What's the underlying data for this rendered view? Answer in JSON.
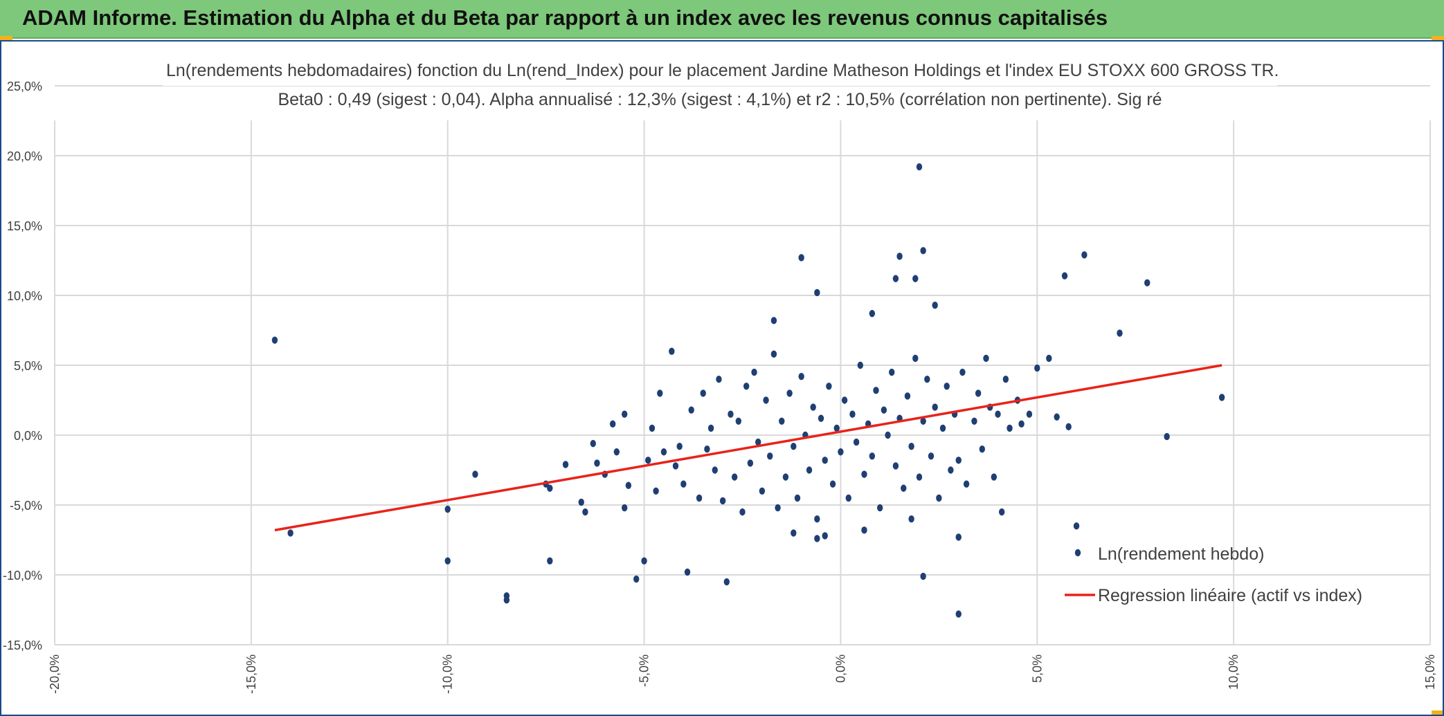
{
  "banner": {
    "title": "ADAM Informe. Estimation du Alpha et du Beta par rapport à un index avec les revenus connus capitalisés",
    "background": "#7dc87a"
  },
  "chart_data": {
    "type": "scatter",
    "title": "Ln(rendements hebdomadaires) fonction du Ln(rend_Index) pour le placement Jardine Matheson Holdings et l'index EU STOXX 600 GROSS TR.",
    "subtitle": "Beta0 : 0,49 (sigest : 0,04). Alpha annualisé : 12,3% (sigest : 4,1%) et r2 : 10,5% (corrélation non pertinente). Sig ré",
    "xlabel": "",
    "ylabel": "",
    "xlim": [
      -0.2,
      0.15
    ],
    "ylim": [
      -0.15,
      0.25
    ],
    "x_ticks": [
      -0.2,
      -0.15,
      -0.1,
      -0.05,
      0.0,
      0.05,
      0.1,
      0.15
    ],
    "y_ticks": [
      -0.15,
      -0.1,
      -0.05,
      0.0,
      0.05,
      0.1,
      0.15,
      0.2,
      0.25
    ],
    "x_tick_labels": [
      "-20,0%",
      "-15,0%",
      "-10,0%",
      "-5,0%",
      "0,0%",
      "5,0%",
      "10,0%",
      "15,0%"
    ],
    "y_tick_labels": [
      "-15,0%",
      "-10,0%",
      "-5,0%",
      "0,0%",
      "5,0%",
      "10,0%",
      "15,0%",
      "20,0%",
      "25,0%"
    ],
    "grid": true,
    "legend_position": "bottom-right",
    "series": [
      {
        "name": "Ln(rendement hebdo)",
        "kind": "scatter",
        "color": "#1f3f73",
        "points": [
          [
            -0.144,
            0.068
          ],
          [
            -0.14,
            -0.07
          ],
          [
            -0.1,
            -0.053
          ],
          [
            -0.1,
            -0.09
          ],
          [
            -0.093,
            -0.028
          ],
          [
            -0.085,
            -0.118
          ],
          [
            -0.085,
            -0.115
          ],
          [
            -0.075,
            -0.035
          ],
          [
            -0.074,
            -0.09
          ],
          [
            -0.074,
            -0.038
          ],
          [
            -0.07,
            -0.021
          ],
          [
            -0.066,
            -0.048
          ],
          [
            -0.065,
            -0.055
          ],
          [
            -0.063,
            -0.006
          ],
          [
            -0.062,
            -0.02
          ],
          [
            -0.06,
            -0.028
          ],
          [
            -0.058,
            0.008
          ],
          [
            -0.057,
            -0.012
          ],
          [
            -0.055,
            0.015
          ],
          [
            -0.055,
            -0.052
          ],
          [
            -0.054,
            -0.036
          ],
          [
            -0.052,
            -0.103
          ],
          [
            -0.05,
            -0.09
          ],
          [
            -0.049,
            -0.018
          ],
          [
            -0.048,
            0.005
          ],
          [
            -0.047,
            -0.04
          ],
          [
            -0.046,
            0.03
          ],
          [
            -0.045,
            -0.012
          ],
          [
            -0.043,
            0.06
          ],
          [
            -0.042,
            -0.022
          ],
          [
            -0.041,
            -0.008
          ],
          [
            -0.04,
            -0.035
          ],
          [
            -0.039,
            -0.098
          ],
          [
            -0.038,
            0.018
          ],
          [
            -0.036,
            -0.045
          ],
          [
            -0.035,
            0.03
          ],
          [
            -0.034,
            -0.01
          ],
          [
            -0.033,
            0.005
          ],
          [
            -0.032,
            -0.025
          ],
          [
            -0.031,
            0.04
          ],
          [
            -0.03,
            -0.047
          ],
          [
            -0.029,
            -0.105
          ],
          [
            -0.028,
            0.015
          ],
          [
            -0.027,
            -0.03
          ],
          [
            -0.026,
            0.01
          ],
          [
            -0.025,
            -0.055
          ],
          [
            -0.024,
            0.035
          ],
          [
            -0.023,
            -0.02
          ],
          [
            -0.022,
            0.045
          ],
          [
            -0.021,
            -0.005
          ],
          [
            -0.02,
            -0.04
          ],
          [
            -0.019,
            0.025
          ],
          [
            -0.018,
            -0.015
          ],
          [
            -0.017,
            0.058
          ],
          [
            -0.016,
            -0.052
          ],
          [
            -0.015,
            0.01
          ],
          [
            -0.014,
            -0.03
          ],
          [
            -0.013,
            0.03
          ],
          [
            -0.012,
            -0.008
          ],
          [
            -0.011,
            -0.045
          ],
          [
            -0.01,
            0.042
          ],
          [
            -0.009,
            0.0
          ],
          [
            -0.008,
            -0.025
          ],
          [
            -0.007,
            0.02
          ],
          [
            -0.006,
            -0.06
          ],
          [
            -0.005,
            0.012
          ],
          [
            -0.004,
            -0.018
          ],
          [
            -0.003,
            0.035
          ],
          [
            -0.002,
            -0.035
          ],
          [
            -0.001,
            0.005
          ],
          [
            0.0,
            -0.012
          ],
          [
            0.001,
            0.025
          ],
          [
            0.002,
            -0.045
          ],
          [
            0.003,
            0.015
          ],
          [
            0.004,
            -0.005
          ],
          [
            0.005,
            0.05
          ],
          [
            0.006,
            -0.028
          ],
          [
            0.007,
            0.008
          ],
          [
            0.008,
            -0.015
          ],
          [
            0.009,
            0.032
          ],
          [
            0.01,
            -0.052
          ],
          [
            0.011,
            0.018
          ],
          [
            0.012,
            0.0
          ],
          [
            0.013,
            0.045
          ],
          [
            0.014,
            -0.022
          ],
          [
            0.015,
            0.012
          ],
          [
            0.016,
            -0.038
          ],
          [
            0.017,
            0.028
          ],
          [
            0.018,
            -0.008
          ],
          [
            0.019,
            0.055
          ],
          [
            0.02,
            -0.03
          ],
          [
            0.021,
            0.01
          ],
          [
            0.022,
            0.04
          ],
          [
            0.023,
            -0.015
          ],
          [
            0.024,
            0.02
          ],
          [
            0.025,
            -0.045
          ],
          [
            0.026,
            0.005
          ],
          [
            0.027,
            0.035
          ],
          [
            0.028,
            -0.025
          ],
          [
            0.029,
            0.015
          ],
          [
            0.03,
            -0.018
          ],
          [
            0.031,
            0.045
          ],
          [
            0.032,
            -0.035
          ],
          [
            0.034,
            0.01
          ],
          [
            0.035,
            0.03
          ],
          [
            0.036,
            -0.01
          ],
          [
            0.037,
            0.055
          ],
          [
            0.038,
            0.02
          ],
          [
            0.039,
            -0.03
          ],
          [
            0.04,
            0.015
          ],
          [
            0.041,
            -0.055
          ],
          [
            0.042,
            0.04
          ],
          [
            0.043,
            0.005
          ],
          [
            0.045,
            0.025
          ],
          [
            0.046,
            0.008
          ],
          [
            0.048,
            0.015
          ],
          [
            0.05,
            0.048
          ],
          [
            0.053,
            0.055
          ],
          [
            0.055,
            0.013
          ],
          [
            0.057,
            0.114
          ],
          [
            0.058,
            0.006
          ],
          [
            0.06,
            -0.065
          ],
          [
            0.062,
            0.129
          ],
          [
            0.071,
            0.073
          ],
          [
            0.078,
            0.109
          ],
          [
            0.083,
            -0.001
          ],
          [
            0.097,
            0.027
          ],
          [
            -0.017,
            0.082
          ],
          [
            -0.01,
            0.127
          ],
          [
            -0.006,
            0.102
          ],
          [
            0.014,
            0.112
          ],
          [
            0.02,
            0.192
          ],
          [
            0.021,
            0.132
          ],
          [
            0.015,
            0.128
          ],
          [
            0.019,
            0.112
          ],
          [
            0.024,
            0.093
          ],
          [
            0.008,
            0.087
          ],
          [
            0.03,
            -0.128
          ],
          [
            0.03,
            -0.073
          ],
          [
            0.021,
            -0.101
          ],
          [
            -0.004,
            -0.072
          ],
          [
            0.006,
            -0.068
          ],
          [
            -0.006,
            -0.074
          ],
          [
            -0.012,
            -0.07
          ],
          [
            0.018,
            -0.06
          ]
        ]
      },
      {
        "name": "Regression linéaire (actif vs index)",
        "kind": "line",
        "color": "#e8231a",
        "points": [
          [
            -0.144,
            -0.068
          ],
          [
            0.097,
            0.05
          ]
        ]
      }
    ]
  }
}
